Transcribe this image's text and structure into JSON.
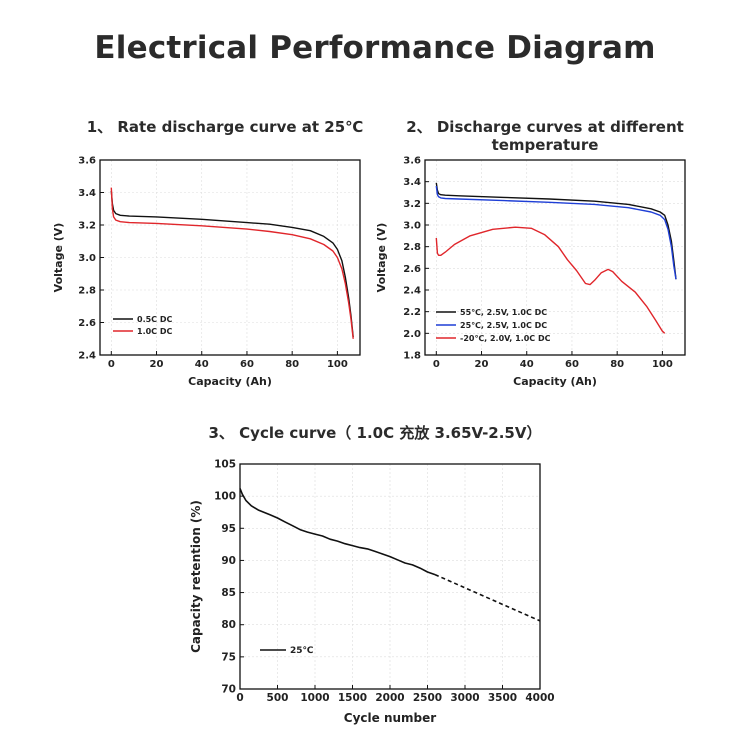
{
  "page": {
    "title": "Electrical Performance Diagram"
  },
  "colors": {
    "black": "#111111",
    "red": "#e0262b",
    "blue": "#1f3fd6",
    "grid": "#dddddd"
  },
  "chart_data": [
    {
      "heading": "1、 Rate discharge curve at 25℃",
      "type": "line",
      "xlabel": "Capacity (Ah)",
      "ylabel": "Voltage (V)",
      "xlim": [
        -5,
        110
      ],
      "ylim": [
        2.4,
        3.6
      ],
      "xticks": [
        0,
        20,
        40,
        60,
        80,
        100
      ],
      "yticks": [
        2.4,
        2.6,
        2.8,
        3.0,
        3.2,
        3.4,
        3.6
      ],
      "ytick_decimals": 1,
      "grid": true,
      "legend_position": "bottom-left",
      "series": [
        {
          "name": "0.5C DC",
          "color": "#111111",
          "x": [
            0,
            0.5,
            1,
            2,
            4,
            8,
            20,
            40,
            60,
            70,
            80,
            88,
            94,
            98,
            100,
            102,
            103.5,
            105,
            106,
            107
          ],
          "y": [
            3.41,
            3.33,
            3.29,
            3.27,
            3.26,
            3.255,
            3.25,
            3.235,
            3.215,
            3.205,
            3.185,
            3.165,
            3.13,
            3.09,
            3.05,
            2.98,
            2.88,
            2.75,
            2.64,
            2.51
          ]
        },
        {
          "name": "1.0C DC",
          "color": "#e0262b",
          "x": [
            0,
            0.5,
            1,
            2,
            4,
            8,
            20,
            40,
            60,
            70,
            80,
            88,
            94,
            98,
            100,
            102,
            103.5,
            105,
            106,
            107
          ],
          "y": [
            3.43,
            3.3,
            3.25,
            3.23,
            3.22,
            3.215,
            3.21,
            3.195,
            3.175,
            3.16,
            3.14,
            3.115,
            3.08,
            3.04,
            3.0,
            2.93,
            2.84,
            2.72,
            2.62,
            2.5
          ]
        }
      ]
    },
    {
      "heading": "2、 Discharge curves at different temperature",
      "type": "line",
      "xlabel": "Capacity (Ah)",
      "ylabel": "Voltage (V)",
      "xlim": [
        -5,
        110
      ],
      "ylim": [
        1.8,
        3.6
      ],
      "xticks": [
        0,
        20,
        40,
        60,
        80,
        100
      ],
      "yticks": [
        1.8,
        2.0,
        2.2,
        2.4,
        2.6,
        2.8,
        3.0,
        3.2,
        3.4,
        3.6
      ],
      "ytick_decimals": 1,
      "grid": true,
      "legend_position": "bottom-left",
      "series": [
        {
          "name": "55℃, 2.5V, 1.0C DC",
          "color": "#111111",
          "x": [
            0,
            0.5,
            1,
            2,
            4,
            10,
            30,
            50,
            70,
            85,
            95,
            99,
            101,
            102.5,
            104,
            105,
            106
          ],
          "y": [
            3.39,
            3.32,
            3.29,
            3.28,
            3.275,
            3.27,
            3.255,
            3.24,
            3.22,
            3.19,
            3.15,
            3.12,
            3.09,
            3.0,
            2.85,
            2.68,
            2.5
          ]
        },
        {
          "name": "25℃, 2.5V, 1.0C DC",
          "color": "#1f3fd6",
          "x": [
            0,
            0.5,
            1,
            2,
            4,
            10,
            30,
            50,
            70,
            85,
            95,
            99,
            101,
            102.5,
            104,
            105,
            106
          ],
          "y": [
            3.36,
            3.28,
            3.26,
            3.25,
            3.245,
            3.24,
            3.225,
            3.21,
            3.19,
            3.16,
            3.12,
            3.09,
            3.05,
            2.96,
            2.8,
            2.63,
            2.5
          ]
        },
        {
          "name": "-20℃, 2.0V, 1.0C DC",
          "color": "#e0262b",
          "x": [
            0,
            0.5,
            1,
            2,
            4,
            8,
            15,
            25,
            35,
            42,
            48,
            54,
            58,
            62,
            66,
            68,
            70,
            73,
            76,
            78,
            82,
            88,
            93,
            97,
            100,
            101
          ],
          "y": [
            2.88,
            2.74,
            2.72,
            2.72,
            2.75,
            2.82,
            2.9,
            2.96,
            2.98,
            2.97,
            2.91,
            2.8,
            2.68,
            2.58,
            2.46,
            2.45,
            2.49,
            2.56,
            2.59,
            2.57,
            2.48,
            2.38,
            2.25,
            2.12,
            2.02,
            2.0
          ]
        }
      ]
    },
    {
      "heading": "3、 Cycle curve（ 1.0C 充放 3.65V-2.5V）",
      "type": "line",
      "xlabel": "Cycle number",
      "ylabel": "Capacity retention (%)",
      "xlim": [
        0,
        4000
      ],
      "ylim": [
        70,
        105
      ],
      "xticks": [
        0,
        500,
        1000,
        1500,
        2000,
        2500,
        3000,
        3500,
        4000
      ],
      "yticks": [
        70,
        75,
        80,
        85,
        90,
        95,
        100,
        105
      ],
      "ytick_decimals": 0,
      "grid": true,
      "legend_position": "bottom-left",
      "series": [
        {
          "name": "25℃",
          "color": "#111111",
          "x": [
            0,
            30,
            80,
            150,
            250,
            400,
            500,
            600,
            700,
            800,
            900,
            1000,
            1100,
            1200,
            1300,
            1400,
            1500,
            1600,
            1700,
            1800,
            1900,
            2000,
            2100,
            2200,
            2300,
            2400,
            2500,
            2600
          ],
          "y": [
            101.2,
            100.3,
            99.3,
            98.5,
            97.8,
            97.1,
            96.6,
            96.0,
            95.4,
            94.8,
            94.4,
            94.1,
            93.8,
            93.3,
            93.0,
            92.6,
            92.3,
            92.0,
            91.8,
            91.4,
            91.0,
            90.6,
            90.1,
            89.6,
            89.3,
            88.8,
            88.2,
            87.8
          ]
        },
        {
          "name": "",
          "color": "#111111",
          "dashed": true,
          "x": [
            2600,
            4000
          ],
          "y": [
            87.8,
            80.6
          ]
        }
      ]
    }
  ]
}
